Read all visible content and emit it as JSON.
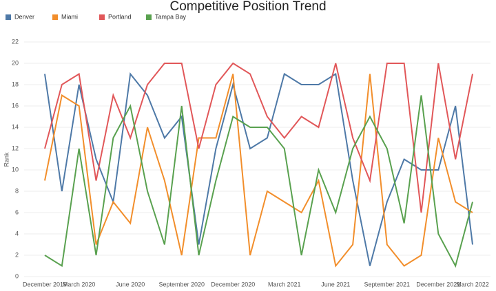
{
  "chart_data": {
    "type": "line",
    "title": "Competitive Position Trend",
    "ylabel": "Rank",
    "categories": [
      "December 2019",
      null,
      "March 2020",
      null,
      null,
      "June 2020",
      null,
      null,
      "September 2020",
      null,
      null,
      "December 2020",
      null,
      null,
      "March 2021",
      null,
      null,
      "June 2021",
      null,
      null,
      "September 2021",
      null,
      null,
      "December 2021",
      null,
      "March 2022"
    ],
    "series": [
      {
        "name": "Denver",
        "color": "#4e79a7",
        "values": [
          19,
          8,
          18,
          11,
          7,
          19,
          17,
          13,
          15,
          3,
          12,
          18,
          12,
          13,
          19,
          18,
          18,
          19,
          9,
          1,
          7,
          11,
          10,
          10,
          16,
          3
        ]
      },
      {
        "name": "Miami",
        "color": "#f28e2b",
        "values": [
          9,
          17,
          16,
          3,
          7,
          5,
          14,
          9,
          2,
          13,
          13,
          19,
          2,
          8,
          7,
          6,
          9,
          1,
          3,
          19,
          3,
          1,
          2,
          13,
          7,
          6
        ]
      },
      {
        "name": "Portland",
        "color": "#e15759",
        "values": [
          12,
          18,
          19,
          9,
          17,
          13,
          18,
          20,
          20,
          12,
          18,
          20,
          19,
          15,
          13,
          15,
          14,
          20,
          13,
          9,
          20,
          20,
          6,
          20,
          11,
          19
        ]
      },
      {
        "name": "Tampa Bay",
        "color": "#59a14f",
        "values": [
          2,
          1,
          12,
          2,
          13,
          16,
          8,
          3,
          16,
          2,
          9,
          15,
          14,
          14,
          12,
          2,
          10,
          6,
          12,
          15,
          12,
          5,
          17,
          4,
          1,
          7
        ]
      }
    ],
    "ylim": [
      0,
      22
    ],
    "yticks": [
      0,
      2,
      4,
      6,
      8,
      10,
      12,
      14,
      16,
      18,
      20,
      22
    ],
    "grid": true,
    "legend": "top-left"
  }
}
